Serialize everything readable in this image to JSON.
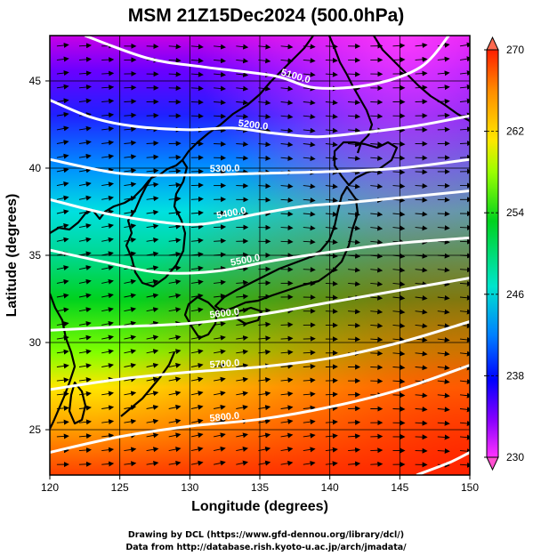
{
  "title": "MSM 21Z15Dec2024 (500.0hPa)",
  "chart_data": {
    "type": "contour_map",
    "xlabel": "Longitude (degrees)",
    "ylabel": "Latitude  (degrees)",
    "xlim": [
      120,
      150
    ],
    "ylim": [
      22.4,
      47.6
    ],
    "x_ticks": [
      120,
      125,
      130,
      135,
      140,
      145,
      150
    ],
    "y_ticks": [
      25,
      30,
      35,
      40,
      45
    ],
    "colorbar": {
      "min": 230,
      "max": 270,
      "tick_values": [
        230,
        238,
        246,
        254,
        262,
        270
      ],
      "colors": [
        "#ff33ff",
        "#7b00ff",
        "#0000ff",
        "#00b4ff",
        "#00e5cc",
        "#00d21e",
        "#9bff00",
        "#ffe600",
        "#ff8c00",
        "#ff1e00"
      ]
    },
    "contours": [
      {
        "label": "5100.0",
        "points": [
          [
            122.5,
            47.6
          ],
          [
            127,
            46.3
          ],
          [
            131,
            45.8
          ],
          [
            136,
            45.3
          ],
          [
            139,
            44.6
          ],
          [
            143,
            44.8
          ],
          [
            146.5,
            45.8
          ],
          [
            148.5,
            47.6
          ]
        ]
      },
      {
        "label": "5200.0",
        "points": [
          [
            120,
            43.9
          ],
          [
            123,
            42.9
          ],
          [
            126,
            42.4
          ],
          [
            130,
            42.2
          ],
          [
            133,
            42.3
          ],
          [
            136,
            42.0
          ],
          [
            139,
            41.8
          ],
          [
            142,
            42.0
          ],
          [
            146,
            42.4
          ],
          [
            150,
            43.0
          ]
        ]
      },
      {
        "label": "5300.0",
        "points": [
          [
            120,
            40.5
          ],
          [
            125,
            39.7
          ],
          [
            130,
            39.6
          ],
          [
            135,
            39.7
          ],
          [
            140,
            39.8
          ],
          [
            145,
            40.0
          ],
          [
            150,
            40.5
          ]
        ]
      },
      {
        "label": "5400.0",
        "points": [
          [
            120,
            38.2
          ],
          [
            124,
            37.4
          ],
          [
            128,
            36.9
          ],
          [
            131,
            36.8
          ],
          [
            135,
            37.4
          ],
          [
            138,
            37.8
          ],
          [
            141,
            38.0
          ],
          [
            145,
            38.3
          ],
          [
            150,
            38.7
          ]
        ]
      },
      {
        "label": "5500.0",
        "points": [
          [
            120,
            35.3
          ],
          [
            124,
            34.6
          ],
          [
            128,
            34.0
          ],
          [
            132,
            34.1
          ],
          [
            136,
            34.7
          ],
          [
            141,
            35.3
          ],
          [
            145,
            35.7
          ],
          [
            150,
            36.0
          ]
        ]
      },
      {
        "label": "5600.0",
        "points": [
          [
            120,
            30.7
          ],
          [
            125,
            30.9
          ],
          [
            130,
            31.1
          ],
          [
            135,
            31.6
          ],
          [
            140,
            32.3
          ],
          [
            145,
            33.0
          ],
          [
            150,
            33.7
          ]
        ]
      },
      {
        "label": "5700.0",
        "points": [
          [
            120,
            27.3
          ],
          [
            125,
            27.9
          ],
          [
            130,
            28.3
          ],
          [
            135,
            28.6
          ],
          [
            140,
            29.1
          ],
          [
            145,
            30.0
          ],
          [
            150,
            31.2
          ]
        ]
      },
      {
        "label": "5800.0",
        "points": [
          [
            120,
            23.7
          ],
          [
            125,
            24.6
          ],
          [
            130,
            25.2
          ],
          [
            135,
            25.6
          ],
          [
            140,
            26.3
          ],
          [
            145,
            27.3
          ],
          [
            150,
            28.7
          ]
        ]
      },
      {
        "label": "",
        "points": [
          [
            146.2,
            22.4
          ],
          [
            148.5,
            23.1
          ],
          [
            150,
            23.7
          ]
        ]
      }
    ]
  },
  "credits": [
    "Drawing by DCL (https://www.gfd-dennou.org/library/dcl/)",
    "Data from http://database.rish.kyoto-u.ac.jp/arch/jmadata/"
  ]
}
